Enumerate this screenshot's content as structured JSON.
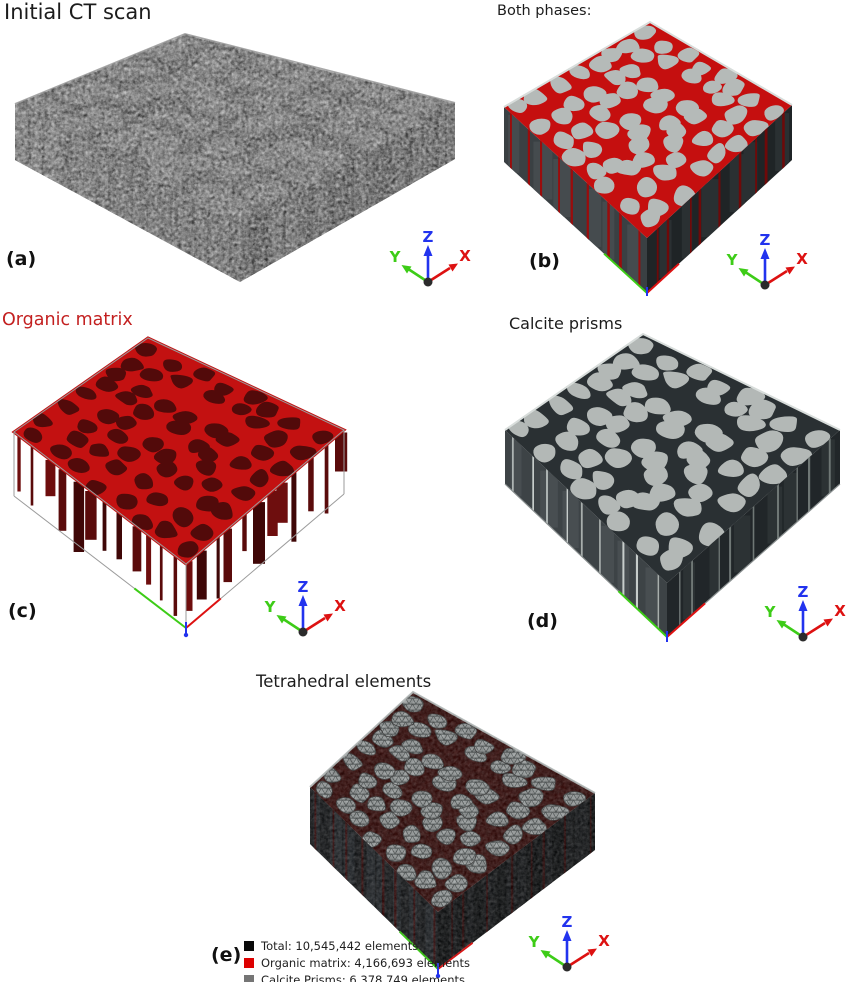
{
  "figure": {
    "background": "#ffffff",
    "axis_triad": {
      "x_label": "X",
      "y_label": "Y",
      "z_label": "Z",
      "x_color": "#dd1111",
      "y_color": "#3dcc17",
      "z_color": "#2233ee",
      "origin_color": "#2b2b2b"
    },
    "panels": {
      "a": {
        "label": "(a)",
        "title": "Initial CT scan",
        "title_color": "#1c1c1c"
      },
      "b": {
        "label": "(b)",
        "title": "Both phases:",
        "title_color": "#1c1c1c"
      },
      "c": {
        "label": "(c)",
        "title": "Organic matrix",
        "title_color": "#c32020"
      },
      "d": {
        "label": "(d)",
        "title": "Calcite prisms",
        "title_color": "#1c1c1c"
      },
      "e": {
        "label": "(e)",
        "title": "Tetrahedral elements",
        "title_color": "#1c1c1c"
      }
    },
    "legend": {
      "items": [
        {
          "label": "Total: 10,545,442 elements",
          "color": "#0a0a0a"
        },
        {
          "label": "Organic matrix: 4,166,693 elements",
          "color": "#dd0000"
        },
        {
          "label": "Calcite Prisms: 6,378,749 elements",
          "color": "#757575"
        }
      ]
    },
    "materials": {
      "organic_matrix_red": "#c31111",
      "organic_matrix_dark": "#520a0a",
      "calcite_prism_gray": "#b5bab8",
      "prism_side_dark": "#2a3033",
      "ct_scan_gray": "#8d8d8d",
      "mesh_boundary_red": "#380d0b"
    }
  }
}
